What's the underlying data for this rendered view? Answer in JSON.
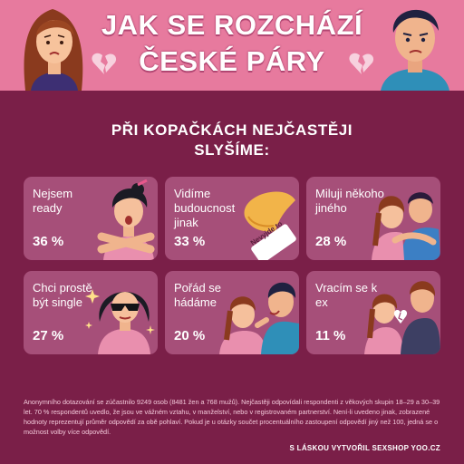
{
  "header": {
    "title_line1": "JAK SE ROZCHÁZÍ",
    "title_line2": "ČESKÉ PÁRY"
  },
  "subtitle": {
    "line1": "PŘI KOPAČKÁCH NEJČASTĚJI",
    "line2": "SLYŠÍME:"
  },
  "cards": [
    {
      "label": "Nejsem ready",
      "percent": "36 %"
    },
    {
      "label": "Vidíme budoucnost jinak",
      "percent": "33 %",
      "sign_text": "Nevyjde to"
    },
    {
      "label": "Miluji někoho jiného",
      "percent": "28 %"
    },
    {
      "label": "Chci prostě být single",
      "percent": "27 %"
    },
    {
      "label": "Pořád se hádáme",
      "percent": "20 %"
    },
    {
      "label": "Vracím se k ex",
      "percent": "11 %"
    }
  ],
  "footnote": "Anonymního dotazování se zúčastnilo 9249 osob (8481 žen a 768 mužů). Nejčastěji odpovídali respondenti z věkových skupin 18–29 a 30–39 let. 70 % respondentů uvedlo, že jsou ve vážném vztahu, v manželství, nebo v registrovaném partnerství. Není-li uvedeno jinak, zobrazené hodnoty reprezentují průměr odpovědí za obě pohlaví. Pokud je u otázky součet procentuálního zastoupení odpovědí jiný než 100, jedná se o možnost volby více odpovědí.",
  "credit": "S LÁSKOU VYTVOŘIL SEXSHOP YOO.CZ",
  "colors": {
    "background": "#7a1f48",
    "header": "#e77a9e",
    "card": "#a64f79"
  }
}
